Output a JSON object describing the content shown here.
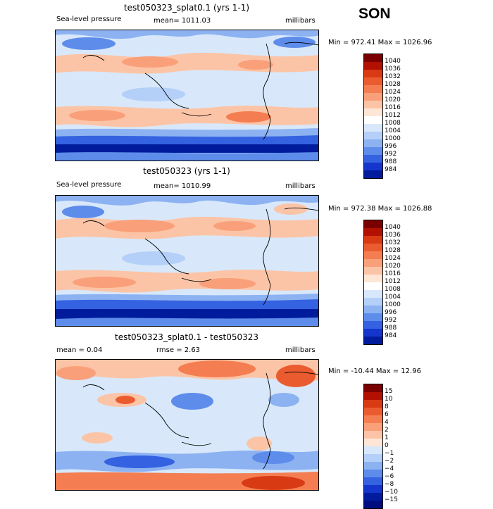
{
  "season": "SON",
  "panels": [
    {
      "title": "test050323_splat0.1 (yrs 1-1)",
      "left_label": "Sea-level pressure",
      "center_label": "mean= 1011.03",
      "right_label": "millibars",
      "minmax": "Min = 972.41 Max = 1026.96",
      "colorbar": {
        "labels": [
          "1040",
          "1036",
          "1032",
          "1028",
          "1024",
          "1020",
          "1016",
          "1012",
          "1008",
          "1004",
          "1000",
          "996",
          "992",
          "988",
          "984"
        ],
        "colors": [
          "#7a0000",
          "#b21000",
          "#d83a14",
          "#ea5c30",
          "#f47e52",
          "#f9a07a",
          "#fcc4a6",
          "#fde6d6",
          "#ffffff",
          "#d8e8fa",
          "#b4d0f8",
          "#8cb2f2",
          "#5e8cea",
          "#3462e0",
          "#1436cc",
          "#001c9c"
        ]
      }
    },
    {
      "title": "test050323 (yrs 1-1)",
      "left_label": "Sea-level pressure",
      "center_label": "mean= 1010.99",
      "right_label": "millibars",
      "minmax": "Min = 972.38 Max = 1026.88",
      "colorbar": {
        "labels": [
          "1040",
          "1036",
          "1032",
          "1028",
          "1024",
          "1020",
          "1016",
          "1012",
          "1008",
          "1004",
          "1000",
          "996",
          "992",
          "988",
          "984"
        ],
        "colors": [
          "#7a0000",
          "#b21000",
          "#d83a14",
          "#ea5c30",
          "#f47e52",
          "#f9a07a",
          "#fcc4a6",
          "#fde6d6",
          "#ffffff",
          "#d8e8fa",
          "#b4d0f8",
          "#8cb2f2",
          "#5e8cea",
          "#3462e0",
          "#1436cc",
          "#001c9c"
        ]
      }
    },
    {
      "title": "test050323_splat0.1 - test050323",
      "left_label": "mean =    0.04",
      "center_label": "rmse =    2.63",
      "right_label": "millibars",
      "minmax": "Min = -10.44 Max =  12.96",
      "colorbar": {
        "labels": [
          "15",
          "10",
          "8",
          "6",
          "4",
          "2",
          "1",
          "0",
          "−1",
          "−2",
          "−4",
          "−6",
          "−8",
          "−10",
          "−15"
        ],
        "colors": [
          "#7a0000",
          "#b21000",
          "#d83a14",
          "#ea5c30",
          "#f47e52",
          "#f9a07a",
          "#fcc4a6",
          "#fde6d6",
          "#d8e8fa",
          "#b4d0f8",
          "#8cb2f2",
          "#5e8cea",
          "#3462e0",
          "#1436cc",
          "#001c9c",
          "#000d80"
        ]
      }
    }
  ],
  "field_colors": {
    "deep_low": "#0a28b4",
    "low": "#2e5ee0",
    "mid_low": "#8cb2f2",
    "pale_blue": "#d8e8fa",
    "neutral": "#fde6d6",
    "warm": "#f9a07a",
    "hot": "#ea5c30",
    "coast": "#000000"
  }
}
